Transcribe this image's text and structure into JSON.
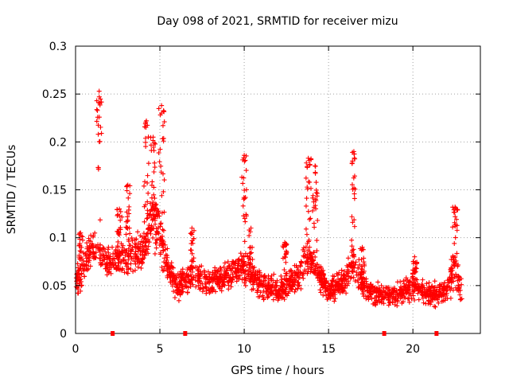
{
  "chart_data": {
    "type": "scatter",
    "title": "Day 098 of 2021, SRMTID for receiver mizu",
    "xlabel": "GPS time / hours",
    "ylabel": "SRMTID / TECUs",
    "xlim": [
      0,
      24
    ],
    "ylim": [
      0,
      0.3
    ],
    "xticks": [
      0,
      5,
      10,
      15,
      20
    ],
    "xtick_labels": [
      "0",
      "5",
      "10",
      "15",
      "20"
    ],
    "yticks": [
      0,
      0.05,
      0.1,
      0.15,
      0.2,
      0.25,
      0.3
    ],
    "ytick_labels": [
      "0",
      "0.05",
      "0.1",
      "0.15",
      "0.2",
      "0.25",
      "0.3"
    ],
    "grid": true,
    "marker": "+",
    "color": "#ff0000",
    "gap_markers_x": [
      2.2,
      6.5,
      18.3,
      21.4
    ],
    "seed": 98,
    "series": [
      {
        "name": "SRMTID",
        "x_range": [
          0,
          22.9
        ],
        "envelope": [
          {
            "x": 0.0,
            "base": 0.055,
            "spread": 0.02
          },
          {
            "x": 0.5,
            "base": 0.07,
            "spread": 0.025
          },
          {
            "x": 1.0,
            "base": 0.09,
            "spread": 0.025
          },
          {
            "x": 1.5,
            "base": 0.08,
            "spread": 0.025
          },
          {
            "x": 2.0,
            "base": 0.075,
            "spread": 0.02
          },
          {
            "x": 3.0,
            "base": 0.08,
            "spread": 0.025
          },
          {
            "x": 4.0,
            "base": 0.085,
            "spread": 0.03
          },
          {
            "x": 4.5,
            "base": 0.12,
            "spread": 0.04
          },
          {
            "x": 5.0,
            "base": 0.11,
            "spread": 0.04
          },
          {
            "x": 5.5,
            "base": 0.065,
            "spread": 0.02
          },
          {
            "x": 6.0,
            "base": 0.05,
            "spread": 0.02
          },
          {
            "x": 7.0,
            "base": 0.06,
            "spread": 0.02
          },
          {
            "x": 8.0,
            "base": 0.055,
            "spread": 0.02
          },
          {
            "x": 9.0,
            "base": 0.06,
            "spread": 0.02
          },
          {
            "x": 10.0,
            "base": 0.07,
            "spread": 0.025
          },
          {
            "x": 11.0,
            "base": 0.05,
            "spread": 0.02
          },
          {
            "x": 12.0,
            "base": 0.045,
            "spread": 0.02
          },
          {
            "x": 13.0,
            "base": 0.055,
            "spread": 0.02
          },
          {
            "x": 13.8,
            "base": 0.08,
            "spread": 0.035
          },
          {
            "x": 14.5,
            "base": 0.06,
            "spread": 0.02
          },
          {
            "x": 15.0,
            "base": 0.045,
            "spread": 0.015
          },
          {
            "x": 16.0,
            "base": 0.055,
            "spread": 0.02
          },
          {
            "x": 16.5,
            "base": 0.075,
            "spread": 0.03
          },
          {
            "x": 17.0,
            "base": 0.05,
            "spread": 0.02
          },
          {
            "x": 18.0,
            "base": 0.04,
            "spread": 0.015
          },
          {
            "x": 19.0,
            "base": 0.04,
            "spread": 0.015
          },
          {
            "x": 20.0,
            "base": 0.05,
            "spread": 0.02
          },
          {
            "x": 21.0,
            "base": 0.04,
            "spread": 0.015
          },
          {
            "x": 22.0,
            "base": 0.045,
            "spread": 0.02
          },
          {
            "x": 22.5,
            "base": 0.07,
            "spread": 0.03
          },
          {
            "x": 22.9,
            "base": 0.04,
            "spread": 0.015
          }
        ],
        "spikes": [
          {
            "x": 0.3,
            "width": 0.25,
            "peak": 0.105
          },
          {
            "x": 1.4,
            "width": 0.3,
            "peak": 0.253
          },
          {
            "x": 2.6,
            "width": 0.3,
            "peak": 0.13
          },
          {
            "x": 3.1,
            "width": 0.25,
            "peak": 0.155
          },
          {
            "x": 4.2,
            "width": 0.3,
            "peak": 0.222
          },
          {
            "x": 4.6,
            "width": 0.3,
            "peak": 0.205
          },
          {
            "x": 5.1,
            "width": 0.35,
            "peak": 0.238
          },
          {
            "x": 6.9,
            "width": 0.25,
            "peak": 0.11
          },
          {
            "x": 10.0,
            "width": 0.3,
            "peak": 0.186
          },
          {
            "x": 10.4,
            "width": 0.25,
            "peak": 0.11
          },
          {
            "x": 12.4,
            "width": 0.25,
            "peak": 0.095
          },
          {
            "x": 13.8,
            "width": 0.35,
            "peak": 0.183
          },
          {
            "x": 14.2,
            "width": 0.3,
            "peak": 0.175
          },
          {
            "x": 16.5,
            "width": 0.3,
            "peak": 0.19
          },
          {
            "x": 17.0,
            "width": 0.25,
            "peak": 0.09
          },
          {
            "x": 20.1,
            "width": 0.3,
            "peak": 0.08
          },
          {
            "x": 22.5,
            "width": 0.3,
            "peak": 0.132
          }
        ],
        "points_per_hour": 85
      }
    ]
  }
}
